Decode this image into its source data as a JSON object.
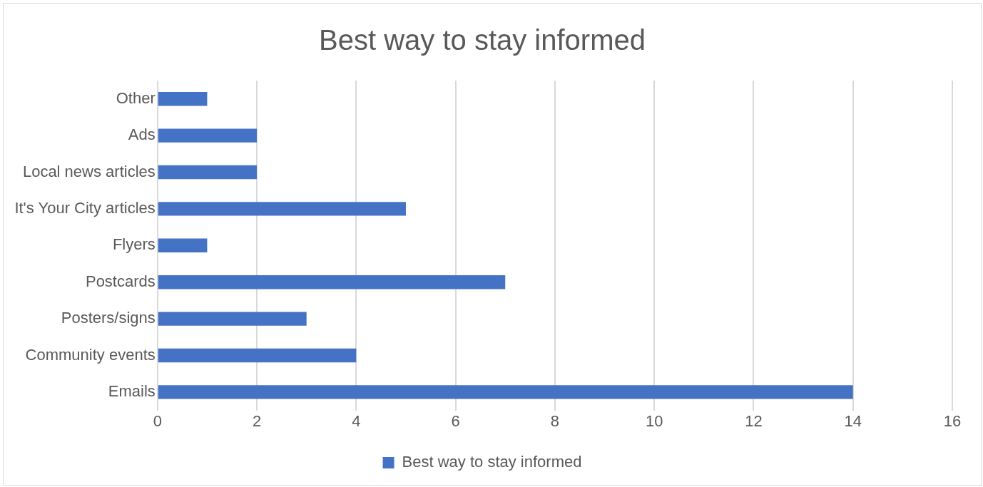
{
  "chart_data": {
    "type": "bar",
    "orientation": "horizontal",
    "title": "Best way to stay informed",
    "categories": [
      "Other",
      "Ads",
      "Local news articles",
      "It's Your City articles",
      "Flyers",
      "Postcards",
      "Posters/signs",
      "Community events",
      "Emails"
    ],
    "series": [
      {
        "name": "Best way to stay informed",
        "color": "#4472c4",
        "values": [
          1,
          2,
          2,
          5,
          1,
          7,
          3,
          4,
          14
        ]
      }
    ],
    "xlim": [
      0,
      16
    ],
    "xticks": [
      0,
      2,
      4,
      6,
      8,
      10,
      12,
      14,
      16
    ],
    "grid": "x",
    "legend": "bottom"
  }
}
